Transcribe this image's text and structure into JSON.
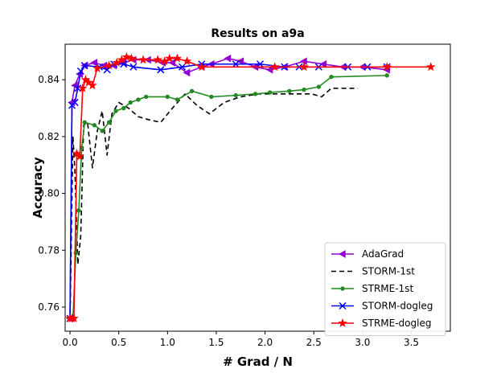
{
  "chart_data": {
    "type": "line",
    "title": "Results on a9a",
    "xlabel": "# Grad / N",
    "ylabel": "Accuracy",
    "xlim": [
      -0.05,
      3.9
    ],
    "ylim": [
      0.7515,
      0.8525
    ],
    "xticks": [
      0.0,
      0.5,
      1.0,
      1.5,
      2.0,
      2.5,
      3.0,
      3.5
    ],
    "xtick_labels": [
      "0.0",
      "0.5",
      "1.0",
      "1.5",
      "2.0",
      "2.5",
      "3.0",
      "3.5"
    ],
    "yticks": [
      0.76,
      0.78,
      0.8,
      0.82,
      0.84
    ],
    "ytick_labels": [
      "0.76",
      "0.78",
      "0.80",
      "0.82",
      "0.84"
    ],
    "grid": false,
    "legend_position": "lower-right",
    "series": [
      {
        "name": "AdaGrad",
        "color": "#9400D3",
        "marker": "triangle-left",
        "dash": "solid",
        "x": [
          0.0,
          0.02,
          0.05,
          0.1,
          0.15,
          0.25,
          0.35,
          0.45,
          0.55,
          0.65,
          0.8,
          0.95,
          1.05,
          1.2,
          1.35,
          1.45,
          1.62,
          1.75,
          1.9,
          2.05,
          2.2,
          2.4,
          2.6,
          2.8,
          3.0,
          3.25
        ],
        "y": [
          0.756,
          0.832,
          0.838,
          0.842,
          0.845,
          0.846,
          0.845,
          0.845,
          0.846,
          0.847,
          0.847,
          0.846,
          0.846,
          0.8425,
          0.8445,
          0.8455,
          0.8475,
          0.8465,
          0.8445,
          0.8435,
          0.8445,
          0.8465,
          0.8455,
          0.8445,
          0.8445,
          0.8435
        ]
      },
      {
        "name": "STORM-1st",
        "color": "#000000",
        "marker": "none",
        "dash": "dashed",
        "x": [
          0.0,
          0.03,
          0.05,
          0.08,
          0.11,
          0.14,
          0.18,
          0.23,
          0.28,
          0.33,
          0.38,
          0.43,
          0.5,
          0.6,
          0.7,
          0.8,
          0.93,
          1.05,
          1.18,
          1.3,
          1.43,
          1.58,
          1.75,
          1.93,
          2.1,
          2.3,
          2.48,
          2.58,
          2.68,
          2.8,
          2.95
        ],
        "y": [
          0.755,
          0.82,
          0.808,
          0.775,
          0.785,
          0.824,
          0.825,
          0.809,
          0.822,
          0.829,
          0.8135,
          0.828,
          0.832,
          0.83,
          0.827,
          0.826,
          0.825,
          0.83,
          0.835,
          0.831,
          0.828,
          0.832,
          0.834,
          0.835,
          0.835,
          0.835,
          0.835,
          0.834,
          0.837,
          0.837,
          0.837
        ]
      },
      {
        "name": "STRME-1st",
        "color": "#228B22",
        "marker": "circle",
        "dash": "solid",
        "x": [
          0.0,
          0.03,
          0.06,
          0.09,
          0.12,
          0.15,
          0.25,
          0.33,
          0.4,
          0.47,
          0.55,
          0.62,
          0.7,
          0.78,
          1.0,
          1.1,
          1.25,
          1.45,
          1.7,
          1.9,
          2.05,
          2.25,
          2.4,
          2.55,
          2.68,
          3.25
        ],
        "y": [
          0.756,
          0.756,
          0.779,
          0.794,
          0.816,
          0.825,
          0.824,
          0.822,
          0.825,
          0.829,
          0.83,
          0.832,
          0.833,
          0.834,
          0.834,
          0.833,
          0.836,
          0.834,
          0.8345,
          0.835,
          0.8355,
          0.836,
          0.8365,
          0.8375,
          0.841,
          0.8415
        ]
      },
      {
        "name": "STORM-dogleg",
        "color": "#0000FF",
        "marker": "x",
        "dash": "solid",
        "x": [
          0.0,
          0.02,
          0.05,
          0.08,
          0.11,
          0.15,
          0.3,
          0.38,
          0.45,
          0.55,
          0.65,
          0.93,
          1.15,
          1.35,
          1.7,
          1.95,
          2.2,
          2.35,
          2.55,
          2.85,
          3.05,
          3.25
        ],
        "y": [
          0.756,
          0.831,
          0.832,
          0.837,
          0.843,
          0.845,
          0.8445,
          0.8435,
          0.8455,
          0.8455,
          0.8445,
          0.8435,
          0.8445,
          0.8455,
          0.8455,
          0.8455,
          0.8445,
          0.8445,
          0.8445,
          0.8445,
          0.8445,
          0.8445
        ]
      },
      {
        "name": "STRME-dogleg",
        "color": "#FF0000",
        "marker": "star",
        "dash": "solid",
        "x": [
          0.0,
          0.02,
          0.04,
          0.07,
          0.1,
          0.13,
          0.16,
          0.19,
          0.23,
          0.28,
          0.4,
          0.48,
          0.53,
          0.58,
          0.63,
          0.75,
          0.9,
          0.97,
          1.02,
          1.1,
          1.2,
          1.35,
          2.1,
          2.4,
          3.25,
          3.7
        ],
        "y": [
          0.756,
          0.756,
          0.756,
          0.814,
          0.813,
          0.837,
          0.84,
          0.839,
          0.838,
          0.844,
          0.845,
          0.846,
          0.847,
          0.848,
          0.8475,
          0.847,
          0.847,
          0.8465,
          0.8475,
          0.8475,
          0.8465,
          0.8445,
          0.8445,
          0.8445,
          0.8445,
          0.8445
        ]
      }
    ]
  }
}
